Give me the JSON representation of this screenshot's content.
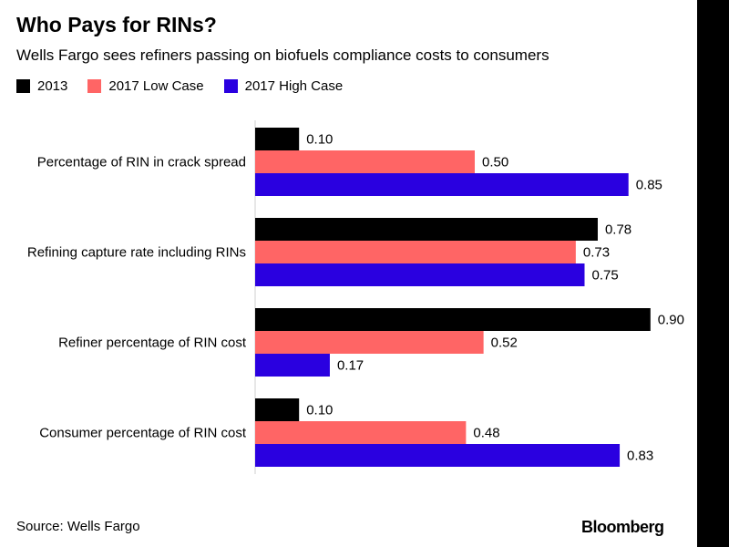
{
  "chart_data": {
    "type": "bar",
    "orientation": "horizontal",
    "title": "Who Pays for RINs?",
    "subtitle": "Wells Fargo sees refiners passing on biofuels compliance costs to consumers",
    "categories": [
      "Percentage of RIN in crack spread",
      "Refining capture rate including RINs",
      "Refiner percentage of RIN cost",
      "Consumer percentage of RIN cost"
    ],
    "series": [
      {
        "name": "2013",
        "color": "#000000",
        "values": [
          0.1,
          0.78,
          0.9,
          0.1
        ],
        "labels": [
          "0.10",
          "0.78",
          "0.90",
          "0.10"
        ]
      },
      {
        "name": "2017 Low Case",
        "color": "#ff6565",
        "values": [
          0.5,
          0.73,
          0.52,
          0.48
        ],
        "labels": [
          "0.50",
          "0.73",
          "0.52",
          "0.48"
        ]
      },
      {
        "name": "2017 High Case",
        "color": "#2a00e0",
        "values": [
          0.85,
          0.75,
          0.17,
          0.83
        ],
        "labels": [
          "0.85",
          "0.75",
          "0.17",
          "0.83"
        ]
      }
    ],
    "xlim": [
      0,
      0.9
    ],
    "legend_position": "top-left",
    "grid": false,
    "source": "Source: Wells Fargo"
  },
  "footer": {
    "source": "Source: Wells Fargo",
    "brand": "Bloomberg"
  }
}
